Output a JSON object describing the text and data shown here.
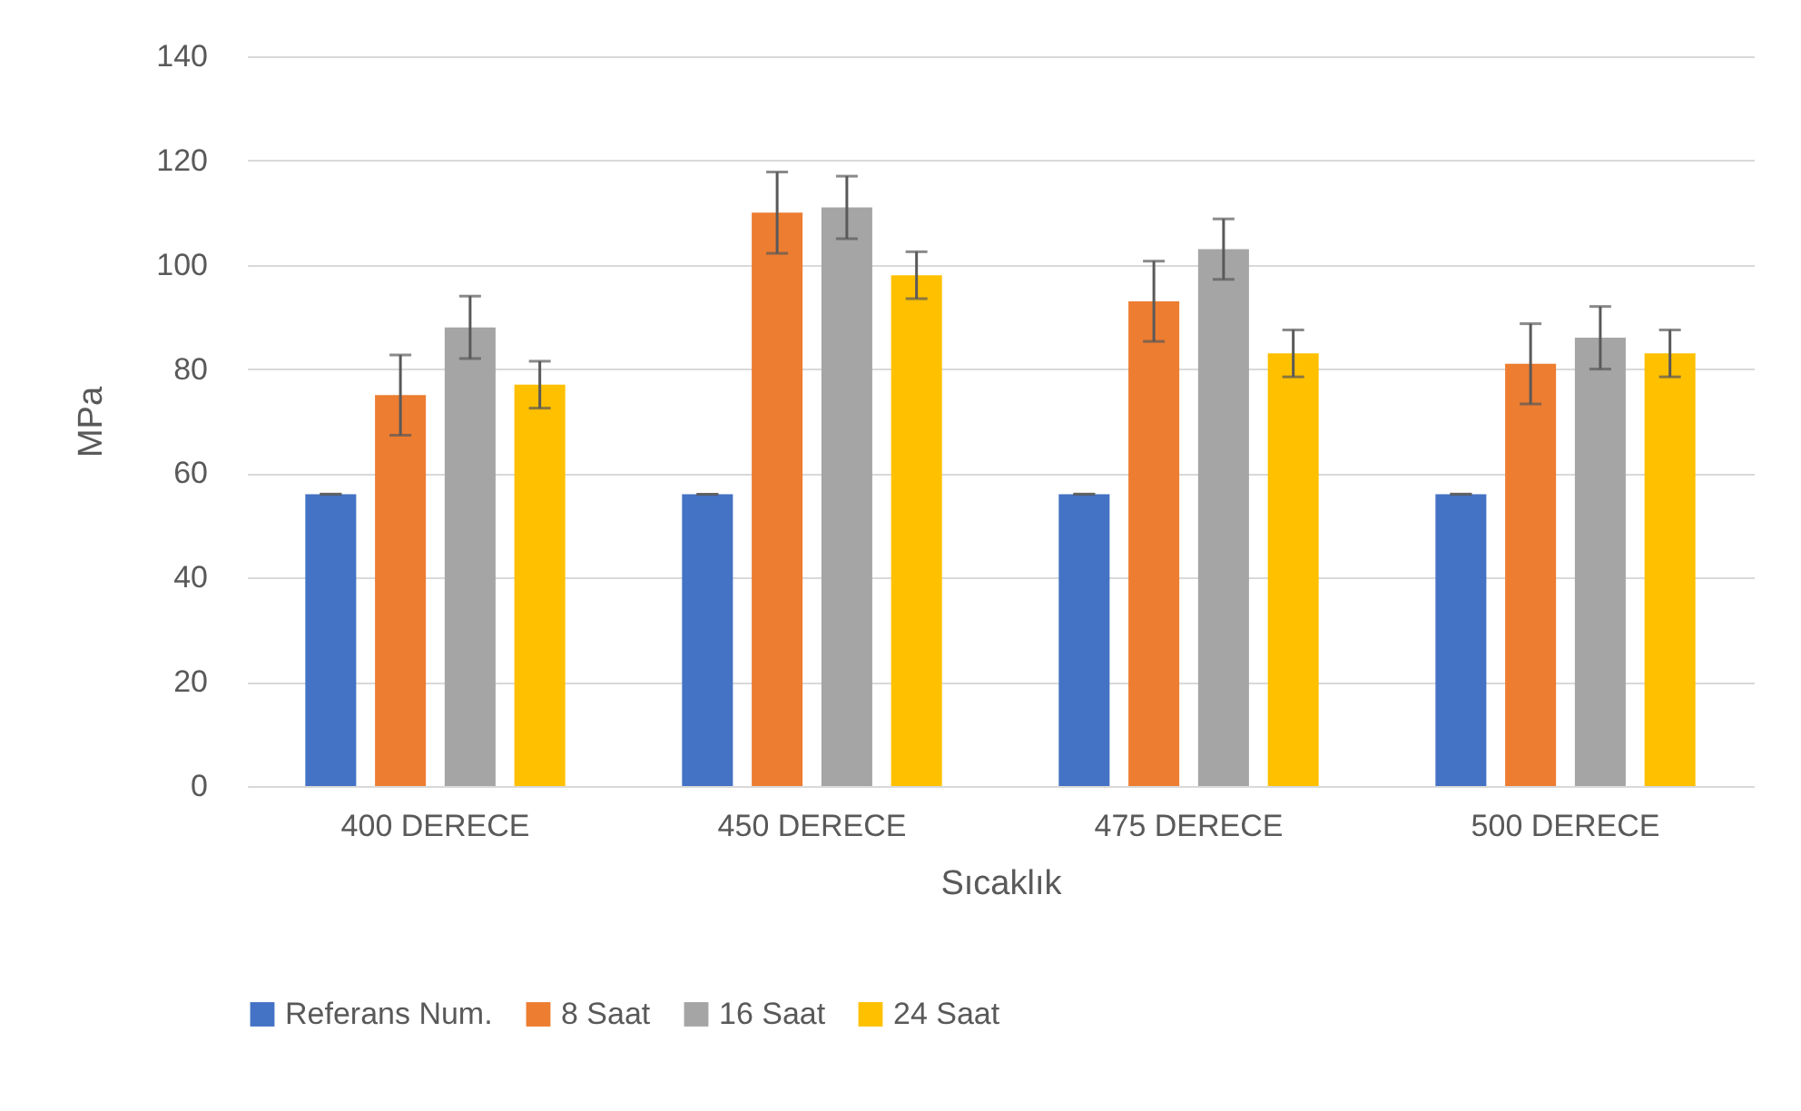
{
  "chart_data": {
    "type": "bar",
    "xlabel": "Sıcaklık",
    "ylabel": "MPa",
    "categories": [
      "400 DERECE",
      "450 DERECE",
      "475 DERECE",
      "500 DERECE"
    ],
    "series": [
      {
        "name": "Referans Num.",
        "color": "#4472c4",
        "values": [
          56,
          56,
          56,
          56
        ],
        "errors": [
          0,
          0,
          0,
          0
        ]
      },
      {
        "name": "8 Saat",
        "color": "#ed7d31",
        "values": [
          75,
          110,
          93,
          81
        ],
        "errors": [
          7.7,
          7.8,
          7.7,
          7.7
        ]
      },
      {
        "name": "16 Saat",
        "color": "#a5a5a5",
        "values": [
          88,
          111,
          103,
          86
        ],
        "errors": [
          6,
          6,
          5.8,
          6
        ]
      },
      {
        "name": "24 Saat",
        "color": "#ffc000",
        "values": [
          77,
          98,
          83,
          83
        ],
        "errors": [
          4.5,
          4.5,
          4.5,
          4.5
        ]
      }
    ],
    "ylim": [
      0,
      140
    ],
    "yticks": [
      0,
      20,
      40,
      60,
      80,
      100,
      120,
      140
    ],
    "grid": "y",
    "legend": "bottom"
  }
}
